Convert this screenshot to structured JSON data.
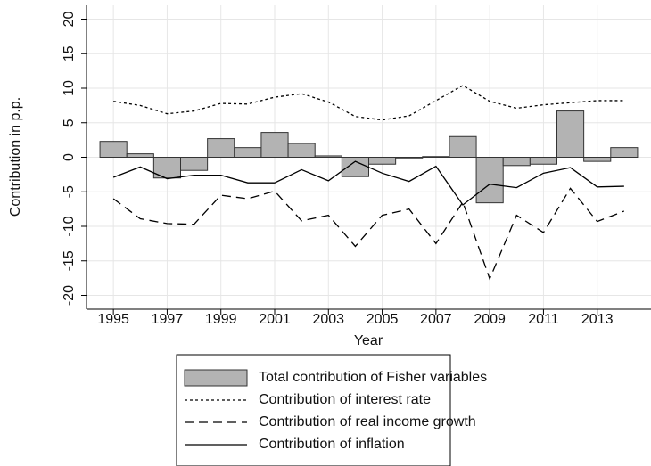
{
  "chart_data": {
    "type": "combo",
    "x_label": "Year",
    "y_label": "Contribution in p.p.",
    "x": [
      1995,
      1996,
      1997,
      1998,
      1999,
      2000,
      2001,
      2002,
      2003,
      2004,
      2005,
      2006,
      2007,
      2008,
      2009,
      2010,
      2011,
      2012,
      2013,
      2014
    ],
    "series": [
      {
        "name": "Total contribution of Fisher variables",
        "type": "bar",
        "color": "#b3b3b3",
        "values": [
          2.3,
          0.5,
          -3.0,
          -1.9,
          2.7,
          1.4,
          3.6,
          2.0,
          0.2,
          -2.8,
          -1.0,
          -0.1,
          0.1,
          3.0,
          -6.6,
          -1.2,
          -1.0,
          6.7,
          -0.6,
          1.4
        ]
      },
      {
        "name": "Contribution of interest rate",
        "type": "line",
        "dash": "dotted",
        "color": "#000000",
        "values": [
          8.1,
          7.5,
          6.3,
          6.7,
          7.8,
          7.7,
          8.7,
          9.2,
          8.0,
          5.9,
          5.4,
          6.0,
          8.2,
          10.4,
          8.1,
          7.1,
          7.6,
          7.9,
          8.2,
          8.2
        ]
      },
      {
        "name": "Contribution of real income growth",
        "type": "line",
        "dash": "dashed",
        "color": "#000000",
        "values": [
          -6.0,
          -8.9,
          -9.6,
          -9.7,
          -5.5,
          -6.0,
          -4.9,
          -9.2,
          -8.4,
          -12.9,
          -8.4,
          -7.5,
          -12.5,
          -6.5,
          -17.6,
          -8.4,
          -10.9,
          -4.5,
          -9.3,
          -7.8
        ]
      },
      {
        "name": "Contribution of inflation",
        "type": "line",
        "dash": "solid",
        "color": "#000000",
        "values": [
          -2.9,
          -1.4,
          -3.1,
          -2.6,
          -2.6,
          -3.7,
          -3.7,
          -1.8,
          -3.4,
          -0.6,
          -2.3,
          -3.5,
          -1.3,
          -6.9,
          -3.9,
          -4.4,
          -2.3,
          -1.5,
          -4.3,
          -4.2
        ]
      }
    ],
    "xlim": [
      1994,
      2015
    ],
    "xticks": [
      1995,
      1997,
      1999,
      2001,
      2003,
      2005,
      2007,
      2009,
      2011,
      2013
    ],
    "ylim": [
      -22,
      22
    ],
    "yticks": [
      -20,
      -15,
      -10,
      -5,
      0,
      5,
      10,
      15,
      20
    ],
    "grid": true
  }
}
